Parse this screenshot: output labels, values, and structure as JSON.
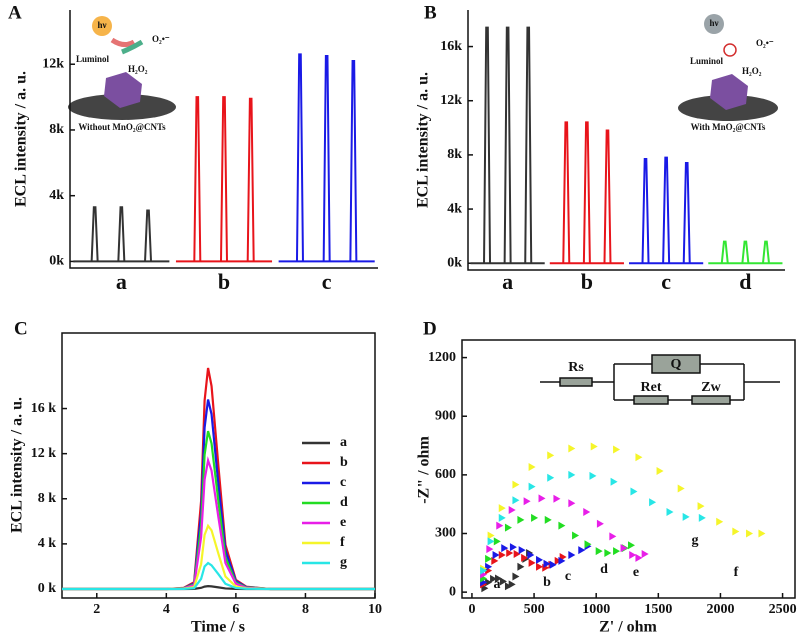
{
  "chart_data": [
    {
      "panel": "A",
      "type": "peaks",
      "y_label": "ECL intensity / a. u.",
      "categories": [
        "a",
        "b",
        "c"
      ],
      "colors": [
        "#333333",
        "#e8141b",
        "#1a1ae6"
      ],
      "values": [
        [
          3300,
          3300,
          3100
        ],
        [
          10000,
          10000,
          9900
        ],
        [
          12600,
          12500,
          12200
        ]
      ],
      "ylim": [
        -400,
        15300
      ],
      "yticks": [
        {
          "value": 0,
          "label": "0k"
        },
        {
          "value": 4000,
          "label": "4k"
        },
        {
          "value": 8000,
          "label": "8k"
        },
        {
          "value": 12000,
          "label": "12k"
        }
      ],
      "annotations": [
        "hν",
        "O₂•⁻",
        "Luminol",
        "H₂O₂",
        "Without MnO₂@CNTs"
      ]
    },
    {
      "panel": "B",
      "type": "peaks",
      "y_label": "ECL intensity / a. u.",
      "categories": [
        "a",
        "b",
        "c",
        "d"
      ],
      "colors": [
        "#333333",
        "#e8141b",
        "#1a1ae6",
        "#33e633"
      ],
      "values": [
        [
          17400,
          17400,
          17400
        ],
        [
          10400,
          10400,
          9800
        ],
        [
          7700,
          7800,
          7400
        ],
        [
          1600,
          1600,
          1600
        ]
      ],
      "ylim": [
        -500,
        18700
      ],
      "yticks": [
        {
          "value": 0,
          "label": "0k"
        },
        {
          "value": 4000,
          "label": "4k"
        },
        {
          "value": 8000,
          "label": "8k"
        },
        {
          "value": 12000,
          "label": "12k"
        },
        {
          "value": 16000,
          "label": "16k"
        }
      ],
      "annotations": [
        "hν",
        "O₂•⁻",
        "Luminol",
        "H₂O₂",
        "With MnO₂@CNTs"
      ]
    },
    {
      "panel": "C",
      "type": "line",
      "x_label": "Time / s",
      "y_label": "ECL intensity / a. u.",
      "x": [
        1,
        2,
        3,
        4,
        4.5,
        4.8,
        5.0,
        5.1,
        5.2,
        5.3,
        5.5,
        5.7,
        6.0,
        6.3,
        7,
        8,
        9,
        10
      ],
      "series": [
        {
          "name": "a",
          "color": "#333333",
          "values": [
            0,
            0,
            0,
            0,
            0,
            10,
            100,
            210,
            250,
            230,
            140,
            50,
            10,
            0,
            0,
            0,
            0,
            0
          ]
        },
        {
          "name": "b",
          "color": "#e8141b",
          "values": [
            0,
            0,
            0,
            0,
            100,
            600,
            7800,
            16700,
            19600,
            18000,
            10800,
            3900,
            800,
            200,
            0,
            0,
            0,
            0
          ]
        },
        {
          "name": "c",
          "color": "#1a1ae6",
          "values": [
            0,
            0,
            0,
            0,
            80,
            500,
            6700,
            14300,
            16800,
            15500,
            9200,
            3400,
            700,
            170,
            0,
            0,
            0,
            0
          ]
        },
        {
          "name": "d",
          "color": "#22dd22",
          "values": [
            0,
            0,
            0,
            0,
            70,
            420,
            5600,
            11900,
            14000,
            12900,
            7700,
            2800,
            560,
            140,
            0,
            0,
            0,
            0
          ]
        },
        {
          "name": "e",
          "color": "#e81ee8",
          "values": [
            0,
            0,
            0,
            0,
            60,
            340,
            4600,
            9700,
            11400,
            10500,
            6300,
            2300,
            460,
            110,
            0,
            0,
            0,
            0
          ]
        },
        {
          "name": "f",
          "color": "#f5f52a",
          "values": [
            0,
            0,
            0,
            0,
            30,
            170,
            2200,
            4800,
            5600,
            5200,
            3100,
            1100,
            220,
            60,
            0,
            0,
            0,
            0
          ]
        },
        {
          "name": "g",
          "color": "#28e6e6",
          "values": [
            0,
            0,
            0,
            0,
            10,
            70,
            900,
            2000,
            2300,
            2100,
            1300,
            460,
            90,
            20,
            0,
            0,
            0,
            0
          ]
        }
      ],
      "xlim": [
        1,
        10
      ],
      "xticks": [
        2,
        4,
        6,
        8,
        10
      ],
      "ylim": [
        -800,
        22700
      ],
      "yticks": [
        {
          "value": 0,
          "label": "0 k"
        },
        {
          "value": 4000,
          "label": "4 k"
        },
        {
          "value": 8000,
          "label": "8 k"
        },
        {
          "value": 12000,
          "label": "12 k"
        },
        {
          "value": 16000,
          "label": "16 k"
        }
      ]
    },
    {
      "panel": "D",
      "type": "scatter",
      "x_label": "Z' / ohm",
      "y_label": "-Z\" / ohm",
      "series": [
        {
          "name": "a",
          "color": "#333333",
          "x": [
            100,
            130,
            170,
            210,
            250,
            290,
            320,
            350,
            390,
            430,
            460
          ],
          "y": [
            20,
            50,
            68,
            70,
            55,
            30,
            40,
            80,
            130,
            170,
            200
          ]
        },
        {
          "name": "b",
          "color": "#e8141b",
          "x": [
            90,
            130,
            180,
            240,
            300,
            360,
            420,
            480,
            540,
            590,
            640,
            690,
            730
          ],
          "y": [
            40,
            110,
            160,
            190,
            200,
            195,
            175,
            150,
            130,
            125,
            140,
            160,
            180
          ]
        },
        {
          "name": "c",
          "color": "#1a1ae6",
          "x": [
            90,
            130,
            190,
            260,
            330,
            400,
            470,
            540,
            600,
            650,
            720,
            800,
            880,
            930
          ],
          "y": [
            50,
            130,
            190,
            225,
            230,
            215,
            190,
            165,
            145,
            140,
            160,
            190,
            215,
            235
          ]
        },
        {
          "name": "d",
          "color": "#22dd22",
          "x": [
            90,
            130,
            200,
            290,
            390,
            500,
            610,
            720,
            830,
            930,
            1020,
            1090,
            1160,
            1230,
            1280
          ],
          "y": [
            70,
            170,
            260,
            330,
            370,
            380,
            370,
            340,
            290,
            245,
            210,
            200,
            210,
            225,
            240
          ]
        },
        {
          "name": "e",
          "color": "#e81ee8",
          "x": [
            90,
            140,
            220,
            320,
            440,
            560,
            680,
            800,
            920,
            1030,
            1130,
            1220,
            1290,
            1340,
            1390
          ],
          "y": [
            90,
            220,
            340,
            420,
            465,
            480,
            478,
            455,
            410,
            350,
            285,
            225,
            190,
            175,
            195
          ]
        },
        {
          "name": "f",
          "color": "#f5f52a",
          "x": [
            90,
            150,
            240,
            350,
            480,
            630,
            800,
            980,
            1160,
            1340,
            1510,
            1680,
            1840,
            1990,
            2120,
            2230,
            2330
          ],
          "y": [
            120,
            290,
            430,
            550,
            640,
            700,
            735,
            745,
            730,
            690,
            620,
            530,
            440,
            360,
            310,
            300,
            300
          ]
        },
        {
          "name": "g",
          "color": "#28e6e6",
          "x": [
            90,
            150,
            240,
            350,
            480,
            630,
            800,
            970,
            1140,
            1300,
            1450,
            1590,
            1720,
            1850
          ],
          "y": [
            110,
            260,
            380,
            470,
            540,
            585,
            600,
            595,
            565,
            515,
            460,
            410,
            385,
            380
          ]
        }
      ],
      "xlim": [
        -80,
        2600
      ],
      "xticks": [
        0,
        500,
        1000,
        1500,
        2000,
        2500
      ],
      "ylim": [
        -30,
        1290
      ],
      "yticks": [
        0,
        300,
        600,
        900,
        1200
      ],
      "annotations": [
        "Rs",
        "Q",
        "Ret",
        "Zw"
      ]
    }
  ]
}
